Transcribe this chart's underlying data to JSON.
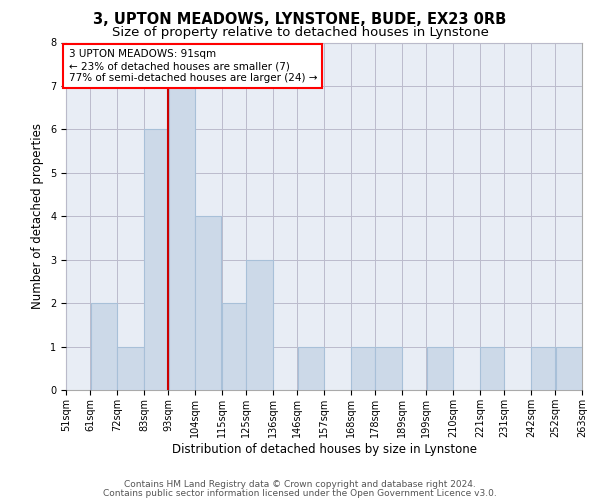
{
  "title1": "3, UPTON MEADOWS, LYNSTONE, BUDE, EX23 0RB",
  "title2": "Size of property relative to detached houses in Lynstone",
  "xlabel": "Distribution of detached houses by size in Lynstone",
  "ylabel": "Number of detached properties",
  "annotation_line1": "3 UPTON MEADOWS: 91sqm",
  "annotation_line2": "← 23% of detached houses are smaller (7)",
  "annotation_line3": "77% of semi-detached houses are larger (24) →",
  "bar_edges": [
    51,
    61,
    72,
    83,
    93,
    104,
    115,
    125,
    136,
    146,
    157,
    168,
    178,
    189,
    199,
    210,
    221,
    231,
    242,
    252,
    263
  ],
  "bar_heights": [
    0,
    2,
    1,
    6,
    7,
    4,
    2,
    3,
    0,
    1,
    0,
    1,
    1,
    0,
    1,
    0,
    1,
    0,
    1,
    1
  ],
  "tick_labels": [
    "51sqm",
    "61sqm",
    "72sqm",
    "83sqm",
    "93sqm",
    "104sqm",
    "115sqm",
    "125sqm",
    "136sqm",
    "146sqm",
    "157sqm",
    "168sqm",
    "178sqm",
    "189sqm",
    "199sqm",
    "210sqm",
    "221sqm",
    "231sqm",
    "242sqm",
    "252sqm",
    "263sqm"
  ],
  "bar_color": "#ccd9e8",
  "bar_edge_color": "#a8c0d8",
  "bar_linewidth": 0.8,
  "ref_line_x": 93,
  "ref_line_color": "#cc0000",
  "grid_color": "#bbbbcc",
  "bg_color": "#e8edf5",
  "ylim": [
    0,
    8
  ],
  "yticks": [
    0,
    1,
    2,
    3,
    4,
    5,
    6,
    7,
    8
  ],
  "footer1": "Contains HM Land Registry data © Crown copyright and database right 2024.",
  "footer2": "Contains public sector information licensed under the Open Government Licence v3.0.",
  "title1_fontsize": 10.5,
  "title2_fontsize": 9.5,
  "xlabel_fontsize": 8.5,
  "ylabel_fontsize": 8.5,
  "tick_fontsize": 7,
  "annot_fontsize": 7.5,
  "footer_fontsize": 6.5
}
